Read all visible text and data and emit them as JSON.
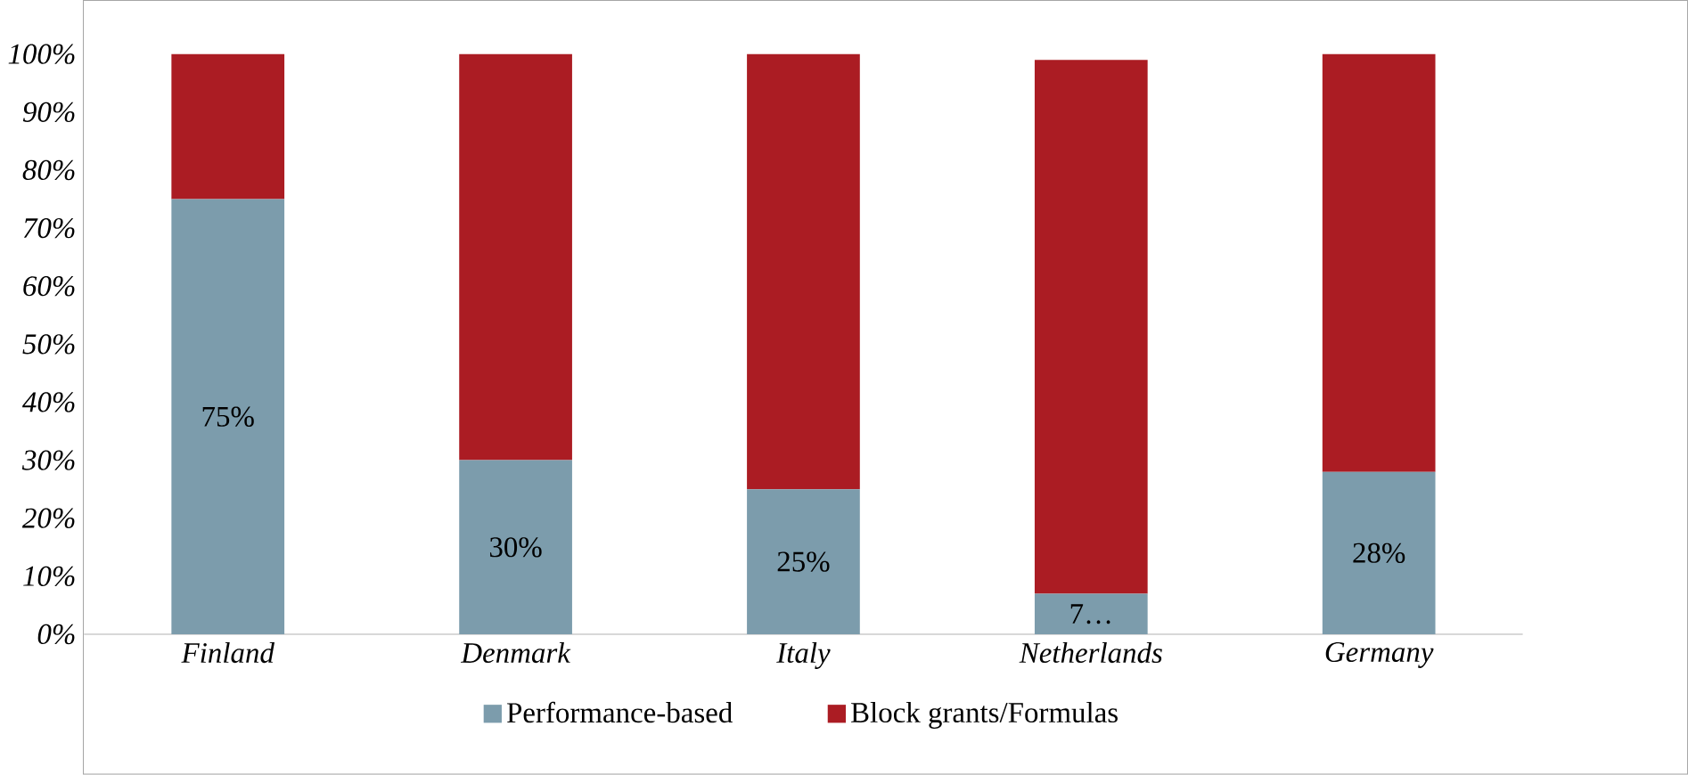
{
  "chart_data": {
    "type": "bar",
    "stacked": true,
    "categories": [
      "Finland",
      "Denmark",
      "Italy",
      "Netherlands",
      "Germany"
    ],
    "series": [
      {
        "name": "Performance-based",
        "color": "#7c9cac",
        "values": [
          75,
          30,
          25,
          7,
          28
        ],
        "value_labels": [
          "75%",
          "30%",
          "25%",
          "7…",
          "28%"
        ]
      },
      {
        "name": "Block grants/Formulas",
        "color": "#ab1c23",
        "values": [
          25,
          70,
          75,
          92,
          72
        ]
      }
    ],
    "ylim": [
      0,
      100
    ],
    "yticks": [
      {
        "value": 0,
        "label": "0%"
      },
      {
        "value": 10,
        "label": "10%"
      },
      {
        "value": 20,
        "label": "20%"
      },
      {
        "value": 30,
        "label": "30%"
      },
      {
        "value": 40,
        "label": "40%"
      },
      {
        "value": 50,
        "label": "50%"
      },
      {
        "value": 60,
        "label": "60%"
      },
      {
        "value": 70,
        "label": "70%"
      },
      {
        "value": 80,
        "label": "80%"
      },
      {
        "value": 90,
        "label": "90%"
      },
      {
        "value": 100,
        "label": "100%"
      }
    ],
    "legend": "bottom"
  }
}
